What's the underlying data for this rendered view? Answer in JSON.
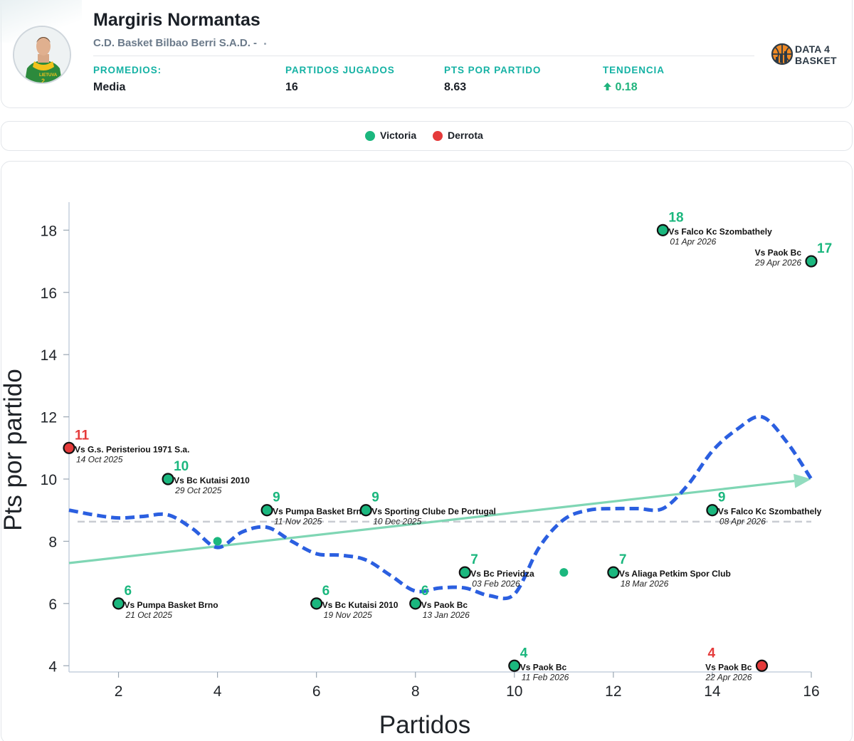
{
  "header": {
    "player_name": "Margiris Normantas",
    "team": "C.D. Basket Bilbao Berri S.A.D. -",
    "jersey_text": "LIETUVA",
    "jersey_number": "2",
    "stats": [
      {
        "label": "PROMEDIOS:",
        "value": "Media"
      },
      {
        "label": "PARTIDOS JUGADOS",
        "value": "16"
      },
      {
        "label": "PTS POR PARTIDO",
        "value": "8.63"
      },
      {
        "label": "TENDENCIA",
        "value": "0.18",
        "icon": "arrow-up-icon"
      }
    ],
    "brand": {
      "line1": "DATA 4",
      "line2": "BASKET",
      "icon": "basketball-icon"
    }
  },
  "legend": {
    "win_label": "Victoria",
    "loss_label": "Derrota"
  },
  "colors": {
    "win": "#1bb77e",
    "loss": "#e53b3b",
    "teal": "#15b2a4",
    "trend": "#7fd6b4",
    "smooth": "#2b5fe0",
    "average": "#c9ccd2"
  },
  "chart_data": {
    "type": "scatter",
    "xlabel": "Partidos",
    "ylabel": "Pts por partido",
    "xlim": [
      1,
      16
    ],
    "ylim": [
      3.8,
      18.9
    ],
    "xticks": [
      2,
      4,
      6,
      8,
      10,
      12,
      14,
      16
    ],
    "yticks": [
      4,
      6,
      8,
      10,
      12,
      14,
      16,
      18
    ],
    "average": 8.63,
    "trend_line": {
      "start": [
        1,
        7.3
      ],
      "end": [
        16,
        10.0
      ]
    },
    "points": [
      {
        "x": 1,
        "y": 11,
        "result": "Derrota",
        "opponent": "Vs G.s. Peristeriou 1971 S.a.",
        "date": "14 Oct 2025"
      },
      {
        "x": 2,
        "y": 6,
        "result": "Victoria",
        "opponent": "Vs Pumpa Basket Brno",
        "date": "21 Oct 2025"
      },
      {
        "x": 3,
        "y": 10,
        "result": "Victoria",
        "opponent": "Vs Bc Kutaisi 2010",
        "date": "29 Oct 2025"
      },
      {
        "x": 5,
        "y": 9,
        "result": "Victoria",
        "opponent": "Vs Pumpa Basket Brno",
        "date": "11 Nov 2025"
      },
      {
        "x": 6,
        "y": 6,
        "result": "Victoria",
        "opponent": "Vs Bc Kutaisi 2010",
        "date": "19 Nov 2025"
      },
      {
        "x": 7,
        "y": 9,
        "result": "Victoria",
        "opponent": "Vs Sporting Clube De Portugal",
        "date": "10 Dec 2025"
      },
      {
        "x": 8,
        "y": 6,
        "result": "Victoria",
        "opponent": "Vs Paok Bc",
        "date": "13 Jan 2026"
      },
      {
        "x": 9,
        "y": 7,
        "result": "Victoria",
        "opponent": "Vs Bc Prievidza",
        "date": "03 Feb 2026"
      },
      {
        "x": 10,
        "y": 4,
        "result": "Victoria",
        "opponent": "Vs Paok Bc",
        "date": "11 Feb 2026"
      },
      {
        "x": 12,
        "y": 7,
        "result": "Victoria",
        "opponent": "Vs Aliaga Petkim Spor Club",
        "date": "18 Mar 2026"
      },
      {
        "x": 13,
        "y": 18,
        "result": "Victoria",
        "opponent": "Vs Falco Kc Szombathely",
        "date": "01 Apr 2026"
      },
      {
        "x": 14,
        "y": 9,
        "result": "Victoria",
        "opponent": "Vs Falco Kc Szombathely",
        "date": "08 Apr 2026"
      },
      {
        "x": 15,
        "y": 4,
        "result": "Derrota",
        "opponent": "Vs Paok Bc",
        "date": "22 Apr 2026"
      },
      {
        "x": 16,
        "y": 17,
        "result": "Victoria",
        "opponent": "Vs Paok Bc",
        "date": "29 Apr 2026"
      }
    ],
    "small_points": [
      {
        "x": 4,
        "y": 8
      },
      {
        "x": 11,
        "y": 7
      }
    ],
    "smooth_curve": [
      [
        1,
        9.0
      ],
      [
        1.5,
        8.85
      ],
      [
        2,
        8.75
      ],
      [
        2.5,
        8.8
      ],
      [
        3,
        8.85
      ],
      [
        3.5,
        8.4
      ],
      [
        4,
        7.8
      ],
      [
        4.5,
        8.3
      ],
      [
        5,
        8.45
      ],
      [
        5.5,
        8.0
      ],
      [
        6,
        7.6
      ],
      [
        6.5,
        7.55
      ],
      [
        7,
        7.4
      ],
      [
        7.5,
        6.9
      ],
      [
        8,
        6.4
      ],
      [
        8.5,
        6.5
      ],
      [
        9,
        6.5
      ],
      [
        9.5,
        6.25
      ],
      [
        10,
        6.3
      ],
      [
        10.5,
        7.8
      ],
      [
        11,
        8.7
      ],
      [
        11.5,
        9.0
      ],
      [
        12,
        9.05
      ],
      [
        12.5,
        9.05
      ],
      [
        13,
        9.05
      ],
      [
        13.5,
        9.8
      ],
      [
        14,
        10.9
      ],
      [
        14.5,
        11.6
      ],
      [
        15,
        12.0
      ],
      [
        15.5,
        11.2
      ],
      [
        16,
        10.0
      ]
    ]
  }
}
